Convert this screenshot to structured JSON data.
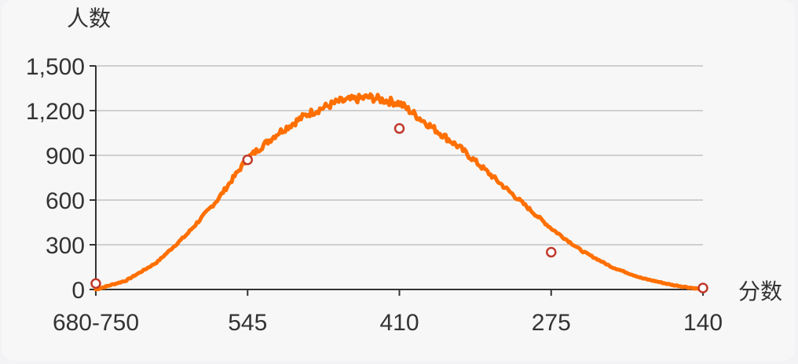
{
  "chart_data": {
    "type": "line",
    "xlabel": "分数",
    "ylabel": "人数",
    "x_tick_labels": [
      "680-750",
      "545",
      "410",
      "275",
      "140"
    ],
    "y_ticks": [
      0,
      300,
      600,
      900,
      1200,
      1500
    ],
    "y_tick_labels": [
      "0",
      "300",
      "600",
      "900",
      "1,200",
      "1,500"
    ],
    "ylim": [
      0,
      1500
    ],
    "grid": true,
    "series": [
      {
        "color": "#ff6f00",
        "curve": [
          [
            0,
            0
          ],
          [
            0.05,
            60
          ],
          [
            0.1,
            180
          ],
          [
            0.15,
            370
          ],
          [
            0.2,
            600
          ],
          [
            0.25,
            880
          ],
          [
            0.3,
            1050
          ],
          [
            0.35,
            1180
          ],
          [
            0.4,
            1260
          ],
          [
            0.45,
            1290
          ],
          [
            0.5,
            1250
          ],
          [
            0.55,
            1100
          ],
          [
            0.6,
            950
          ],
          [
            0.65,
            770
          ],
          [
            0.7,
            590
          ],
          [
            0.75,
            410
          ],
          [
            0.8,
            260
          ],
          [
            0.85,
            150
          ],
          [
            0.9,
            75
          ],
          [
            0.95,
            30
          ],
          [
            1,
            0
          ]
        ]
      }
    ],
    "markers": [
      {
        "x": "680-750",
        "y": 40
      },
      {
        "x": "545",
        "y": 870
      },
      {
        "x": "410",
        "y": 1080
      },
      {
        "x": "275",
        "y": 250
      },
      {
        "x": "140",
        "y": 10
      }
    ],
    "colors": {
      "line": "#ff6f00",
      "marker_stroke": "#c0392b",
      "grid": "#cfcfcf",
      "axis": "#333333"
    }
  }
}
